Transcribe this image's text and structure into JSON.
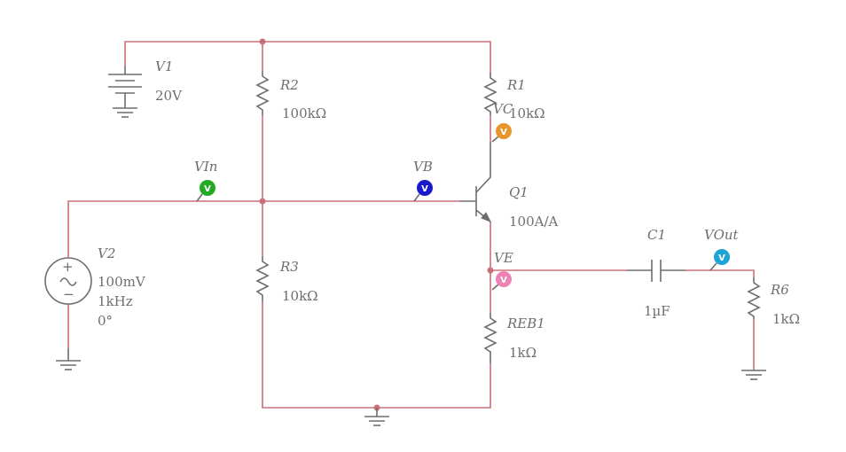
{
  "components": {
    "V1": {
      "name": "V1",
      "value": "20V"
    },
    "V2": {
      "name": "V2",
      "amplitude": "100mV",
      "frequency": "1kHz",
      "phase": "0°"
    },
    "R1": {
      "name": "R1",
      "value": "10kΩ"
    },
    "R2": {
      "name": "R2",
      "value": "100kΩ"
    },
    "R3": {
      "name": "R3",
      "value": "10kΩ"
    },
    "REB1": {
      "name": "REB1",
      "value": "1kΩ"
    },
    "R6": {
      "name": "R6",
      "value": "1kΩ"
    },
    "C1": {
      "name": "C1",
      "value": "1µF"
    },
    "Q1": {
      "name": "Q1",
      "value": "100A/A"
    }
  },
  "probes": {
    "VIn": {
      "name": "VIn",
      "symbol": "V",
      "color": "#22aa22"
    },
    "VB": {
      "name": "VB",
      "symbol": "V",
      "color": "#1a1acc"
    },
    "VC": {
      "name": "VC",
      "symbol": "V",
      "color": "#e8952a"
    },
    "VE": {
      "name": "VE",
      "symbol": "V",
      "color": "#ef82b4"
    },
    "VOut": {
      "name": "VOut",
      "symbol": "V",
      "color": "#1ea3d6"
    }
  },
  "colors": {
    "wire": "#c9707a",
    "component": "#6e6e6e"
  }
}
